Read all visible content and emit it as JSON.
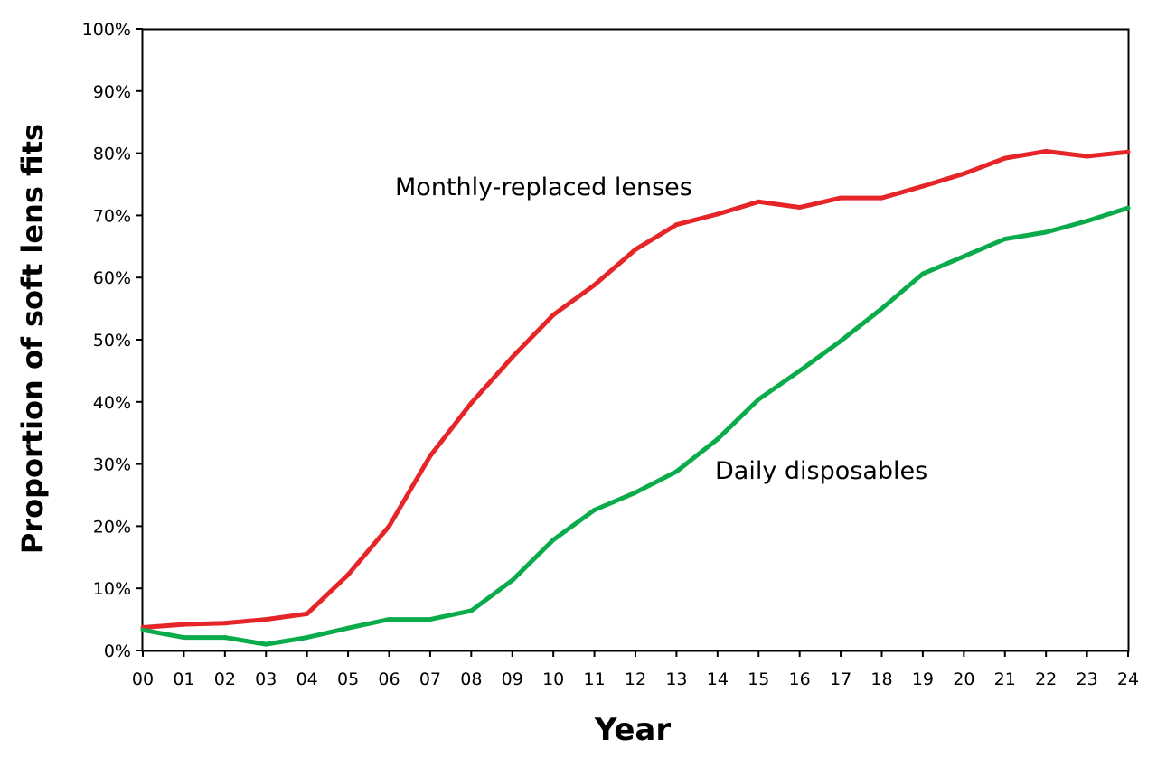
{
  "chart_data": {
    "type": "line",
    "xlabel": "Year",
    "ylabel": "Proportion of soft lens fits",
    "categories": [
      "00",
      "01",
      "02",
      "03",
      "04",
      "05",
      "06",
      "07",
      "08",
      "09",
      "10",
      "11",
      "12",
      "13",
      "14",
      "15",
      "16",
      "17",
      "18",
      "19",
      "20",
      "21",
      "22",
      "23",
      "24"
    ],
    "ylim": [
      0,
      100
    ],
    "yticks": [
      "0%",
      "10%",
      "20%",
      "30%",
      "40%",
      "50%",
      "60%",
      "70%",
      "80%",
      "90%",
      "100%"
    ],
    "grid": false,
    "legend": "none",
    "series": [
      {
        "name": "Monthly-replaced lenses",
        "color": "#e52528",
        "values": [
          3.7,
          4.2,
          4.4,
          5.0,
          5.9,
          12.2,
          20.0,
          31.3,
          39.8,
          47.2,
          54.0,
          58.8,
          64.5,
          68.5,
          70.2,
          72.2,
          71.3,
          72.8,
          72.8,
          74.7,
          76.7,
          79.2,
          80.3,
          79.5,
          80.2
        ]
      },
      {
        "name": "Daily disposables",
        "color": "#0aab4a",
        "values": [
          3.3,
          2.1,
          2.1,
          1.0,
          2.1,
          3.6,
          5.0,
          5.0,
          6.4,
          11.3,
          17.8,
          22.6,
          25.4,
          28.8,
          34.0,
          40.4,
          45.0,
          49.8,
          55.0,
          60.6,
          63.4,
          66.2,
          67.3,
          69.1,
          71.2
        ]
      }
    ],
    "annotations": [
      {
        "text": "Monthly-replaced lenses",
        "series": 0
      },
      {
        "text": "Daily disposables",
        "series": 1
      }
    ]
  }
}
